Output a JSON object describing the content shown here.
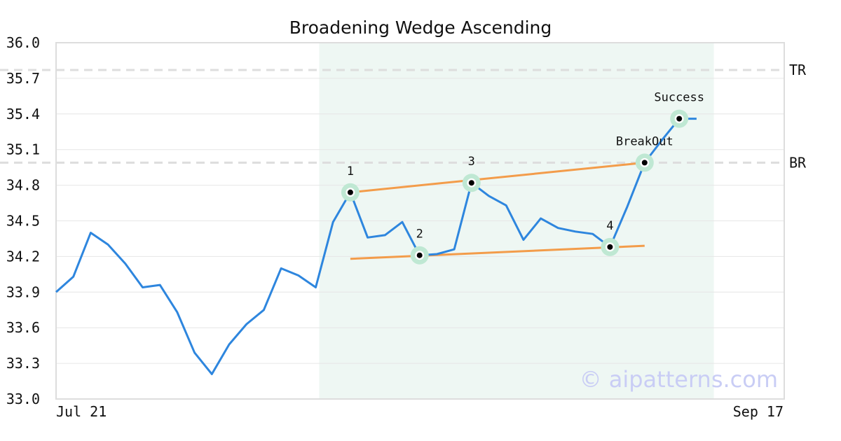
{
  "chart_data": {
    "type": "line",
    "title": "Broadening Wedge Ascending",
    "xlabel": "",
    "ylabel": "",
    "ylim": [
      33.0,
      36.0
    ],
    "yticks": [
      "33.0",
      "33.3",
      "33.6",
      "33.9",
      "34.2",
      "34.5",
      "34.8",
      "35.1",
      "35.4",
      "35.7",
      "36.0"
    ],
    "xtick_labels": [
      "Jul 21",
      "Sep 17"
    ],
    "grid": true,
    "series": [
      {
        "values": [
          33.9,
          34.03,
          34.4,
          34.3,
          34.14,
          33.94,
          33.96,
          33.73,
          33.39,
          33.21,
          33.46,
          33.63,
          33.75,
          34.1,
          34.04,
          33.94,
          34.49,
          34.74,
          34.36,
          34.38,
          34.49,
          34.21,
          34.22,
          34.26,
          34.82,
          34.71,
          34.63,
          34.34,
          34.52,
          34.44,
          34.41,
          34.39,
          34.28,
          34.62,
          34.99,
          35.18,
          35.36,
          35.36
        ]
      }
    ],
    "highlight_range": [
      15,
      38
    ],
    "trendlines": [
      {
        "from": [
          17,
          34.74
        ],
        "to": [
          34,
          34.99
        ]
      },
      {
        "from": [
          17,
          34.18
        ],
        "to": [
          34,
          34.29
        ]
      }
    ],
    "reference_lines": [
      {
        "label": "TR",
        "y": 35.77
      },
      {
        "label": "BR",
        "y": 34.99
      }
    ],
    "pattern_points": [
      {
        "label": "1",
        "x": 17,
        "y": 34.74
      },
      {
        "label": "2",
        "x": 21,
        "y": 34.21
      },
      {
        "label": "3",
        "x": 24,
        "y": 34.82
      },
      {
        "label": "4",
        "x": 32,
        "y": 34.28
      },
      {
        "label": "BreakOut",
        "x": 34,
        "y": 34.99
      },
      {
        "label": "Success",
        "x": 36,
        "y": 35.36
      }
    ],
    "watermark": "© aipatterns.com",
    "colors": {
      "line": "#2e86de",
      "trendline": "#f39c4a",
      "highlight": "#eef7f3",
      "marker_halo": "#bfe8d3",
      "reference": "#dddddd",
      "frame": "#dddddd",
      "grid": "#e6e6e6"
    }
  }
}
